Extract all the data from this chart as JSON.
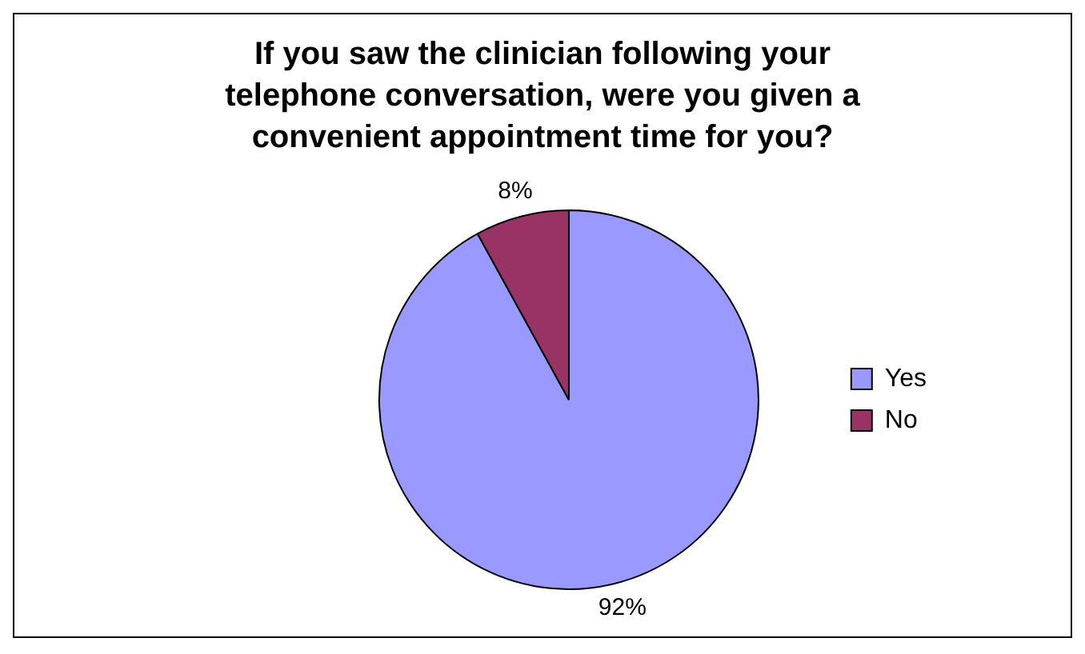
{
  "chart_data": {
    "type": "pie",
    "title": "If you saw the clinician following your telephone conversation, were you given a convenient appointment time for you?",
    "categories": [
      "Yes",
      "No"
    ],
    "values": [
      92,
      8
    ],
    "colors": [
      "#9999ff",
      "#993366"
    ],
    "value_labels": [
      "92%",
      "8%"
    ],
    "legend": "right"
  }
}
